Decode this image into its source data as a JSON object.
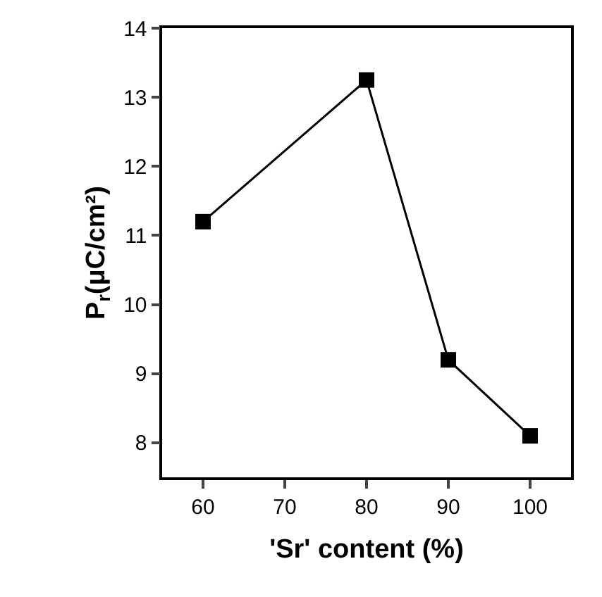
{
  "chart_data": {
    "type": "line",
    "xlabel": "'Sr' content (%)",
    "ylabel": "P$_{r}$(μC/cm²)",
    "x": [
      60,
      80,
      90,
      100
    ],
    "series": [
      {
        "color": "#000000",
        "values": [
          11.2,
          13.25,
          9.2,
          8.1
        ]
      }
    ],
    "xlim": [
      55,
      105
    ],
    "xticks": [
      60,
      70,
      80,
      90,
      100
    ],
    "ylim": [
      7.5,
      14
    ],
    "yticks": [
      8,
      9,
      10,
      11,
      12,
      13,
      14
    ],
    "marker": "square",
    "line_style": "solid"
  }
}
